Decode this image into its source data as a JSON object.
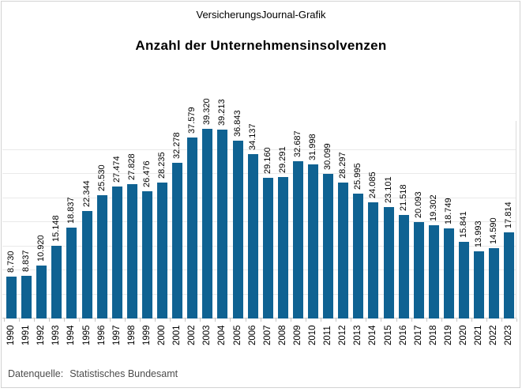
{
  "page": {
    "brand": "VersicherungsJournal-Grafik",
    "title": "Anzahl der Unternehmensinsolvenzen",
    "source_label": "Datenquelle:",
    "source_value": "Statistisches Bundesamt"
  },
  "colors": {
    "bar": "#0f6292",
    "gridline": "#e9e9e9",
    "axis": "#c8c8c8",
    "frame_border": "#d2d2d2",
    "source_text": "#4d4d4d"
  },
  "chart_data": {
    "type": "bar",
    "title": "Anzahl der Unternehmensinsolvenzen",
    "subtitle": "VersicherungsJournal-Grafik",
    "source": "Datenquelle: Statistisches Bundesamt",
    "xlabel": "",
    "ylabel": "",
    "legend": "none",
    "grid": "horizontal",
    "ylim": [
      0,
      41000
    ],
    "gridline_step": 5000,
    "bar_color": "#0f6292",
    "label_rotation_deg": 90,
    "thousands_separator": ".",
    "categories": [
      "1990",
      "1991",
      "1992",
      "1993",
      "1994",
      "1995",
      "1996",
      "1997",
      "1998",
      "1999",
      "2000",
      "2001",
      "2002",
      "2003",
      "2004",
      "2005",
      "2006",
      "2007",
      "2008",
      "2009",
      "2010",
      "2011",
      "2012",
      "2013",
      "2014",
      "2015",
      "2016",
      "2017",
      "2018",
      "2019",
      "2020",
      "2021",
      "2022",
      "2023"
    ],
    "values": [
      8730,
      8837,
      10920,
      15148,
      18837,
      22344,
      25530,
      27474,
      27828,
      26476,
      28235,
      32278,
      37579,
      39320,
      39213,
      36843,
      34137,
      29160,
      29291,
      32687,
      31998,
      30099,
      28297,
      25995,
      24085,
      23101,
      21518,
      20093,
      19302,
      18749,
      15841,
      13993,
      14590,
      17814
    ],
    "value_labels": [
      "8.730",
      "8.837",
      "10.920",
      "15.148",
      "18.837",
      "22.344",
      "25.530",
      "27.474",
      "27.828",
      "26.476",
      "28.235",
      "32.278",
      "37.579",
      "39.320",
      "39.213",
      "36.843",
      "34.137",
      "29.160",
      "29.291",
      "32.687",
      "31.998",
      "30.099",
      "28.297",
      "25.995",
      "24.085",
      "23.101",
      "21.518",
      "20.093",
      "19.302",
      "18.749",
      "15.841",
      "13.993",
      "14.590",
      "17.814"
    ]
  }
}
